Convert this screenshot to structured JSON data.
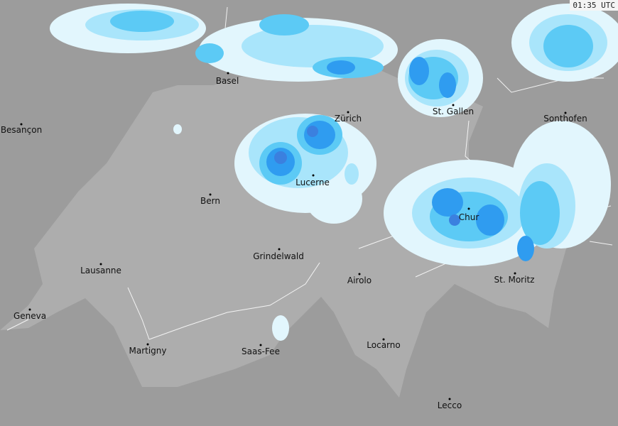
{
  "timestamp": "01:35 UTC",
  "colors": {
    "outside": "#9c9c9c",
    "switzerland": "#adadad",
    "precip_very_light": "#e2f6fd",
    "precip_light": "#a9e5fb",
    "precip_moderate": "#5ccaf5",
    "precip_heavy": "#2f9cf0",
    "precip_very_heavy": "#3b80df"
  },
  "cities": [
    {
      "name": "Basel"
    },
    {
      "name": "Besançon"
    },
    {
      "name": "Zürich"
    },
    {
      "name": "St. Gallen"
    },
    {
      "name": "Sonthofen"
    },
    {
      "name": "Lucerne"
    },
    {
      "name": "Bern"
    },
    {
      "name": "Chur"
    },
    {
      "name": "Grindelwald"
    },
    {
      "name": "Lausanne"
    },
    {
      "name": "Airolo"
    },
    {
      "name": "St. Moritz"
    },
    {
      "name": "Geneva"
    },
    {
      "name": "Martigny"
    },
    {
      "name": "Saas-Fee"
    },
    {
      "name": "Locarno"
    },
    {
      "name": "Lecco"
    }
  ]
}
